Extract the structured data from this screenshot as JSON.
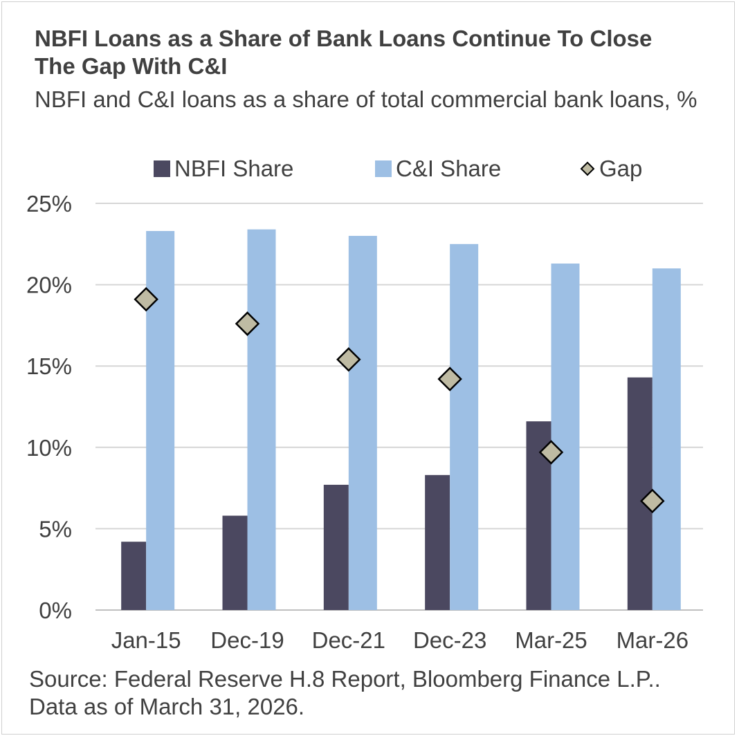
{
  "chart_data": {
    "type": "bar",
    "title": "NBFI Loans as a Share of Bank Loans Continue To Close The Gap With C&I",
    "subtitle": "NBFI and C&I loans as a share of total commercial bank loans, %",
    "categories": [
      "Jan-15",
      "Dec-19",
      "Dec-21",
      "Dec-23",
      "Mar-25",
      "Mar-26"
    ],
    "series": [
      {
        "name": "NBFI Share",
        "kind": "bar",
        "color": "#4b4860",
        "values": [
          4.2,
          5.8,
          7.7,
          8.3,
          11.6,
          14.3
        ]
      },
      {
        "name": "C&I Share",
        "kind": "bar",
        "color": "#9dbfe4",
        "values": [
          23.3,
          23.4,
          23.0,
          22.5,
          21.3,
          21.0
        ]
      },
      {
        "name": "Gap",
        "kind": "marker",
        "color": "#bfbba3",
        "values": [
          19.1,
          17.6,
          15.4,
          14.2,
          9.7,
          6.7
        ]
      }
    ],
    "ylim": [
      0,
      25
    ],
    "yticks": [
      0,
      5,
      10,
      15,
      20,
      25
    ],
    "ytick_labels": [
      "0%",
      "5%",
      "10%",
      "15%",
      "20%",
      "25%"
    ],
    "grid": true,
    "legend_position": "top",
    "source": "Source: Federal Reserve H.8 Report, Bloomberg Finance L.P.. Data as of March 31, 2026."
  }
}
